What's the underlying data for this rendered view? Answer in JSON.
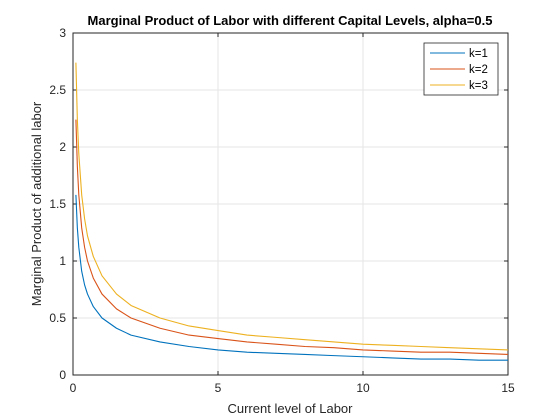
{
  "chart_data": {
    "type": "line",
    "title": "Marginal Product of Labor with different Capital Levels, alpha=0.5",
    "xlabel": "Current level of Labor",
    "ylabel": "Marginal Product of additional labor",
    "xlim": [
      0,
      15
    ],
    "ylim": [
      0,
      3
    ],
    "xticks": [
      0,
      5,
      10,
      15
    ],
    "yticks": [
      0,
      0.5,
      1,
      1.5,
      2,
      2.5,
      3
    ],
    "xtick_labels": [
      "0",
      "5",
      "10",
      "15"
    ],
    "ytick_labels": [
      "0",
      "0.5",
      "1",
      "1.5",
      "2",
      "2.5",
      "3"
    ],
    "grid": true,
    "legend_position": "top-right",
    "x": [
      0.1,
      0.15,
      0.2,
      0.3,
      0.4,
      0.5,
      0.7,
      1,
      1.5,
      2,
      3,
      4,
      5,
      6,
      7,
      8,
      9,
      10,
      11,
      12,
      13,
      14,
      15
    ],
    "series": [
      {
        "name": "k=1",
        "color": "#0072BD",
        "values": [
          1.58,
          1.29,
          1.12,
          0.91,
          0.79,
          0.71,
          0.6,
          0.5,
          0.41,
          0.35,
          0.29,
          0.25,
          0.22,
          0.2,
          0.19,
          0.18,
          0.17,
          0.16,
          0.15,
          0.14,
          0.14,
          0.13,
          0.13
        ]
      },
      {
        "name": "k=2",
        "color": "#D95319",
        "values": [
          2.24,
          1.83,
          1.58,
          1.29,
          1.12,
          1.0,
          0.85,
          0.71,
          0.58,
          0.5,
          0.41,
          0.35,
          0.32,
          0.29,
          0.27,
          0.25,
          0.24,
          0.22,
          0.21,
          0.2,
          0.2,
          0.19,
          0.18
        ]
      },
      {
        "name": "k=3",
        "color": "#EDB120",
        "values": [
          2.74,
          2.24,
          1.94,
          1.58,
          1.37,
          1.22,
          1.04,
          0.87,
          0.71,
          0.61,
          0.5,
          0.43,
          0.39,
          0.35,
          0.33,
          0.31,
          0.29,
          0.27,
          0.26,
          0.25,
          0.24,
          0.23,
          0.22
        ]
      }
    ]
  }
}
